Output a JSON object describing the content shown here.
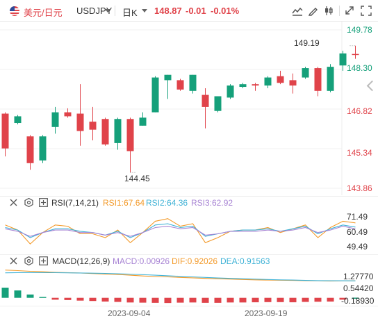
{
  "header": {
    "symbol_cn": "美元/日元",
    "symbol_en": "USDJPY",
    "period": "日K",
    "price": "148.87",
    "change": "-0.01",
    "change_pct": "-0.01%",
    "tool_icons": [
      "indicator-icon",
      "draw-pen-icon",
      "candle-style-icon",
      "expand-icon",
      "fullscreen-icon"
    ]
  },
  "colors": {
    "up": "#e0434a",
    "down": "#15a07a",
    "rsi1": "#f39a2a",
    "rsi2": "#3fb2d6",
    "rsi3": "#a884d4",
    "dif": "#f39a2a",
    "dea": "#3fb2d6"
  },
  "chart_data": [
    {
      "type": "candlestick",
      "title": "USDJPY 日K",
      "y_ticks": [
        "149.78",
        "148.30",
        "146.82",
        "145.34",
        "143.86"
      ],
      "ylim": [
        143.86,
        149.78
      ],
      "x_ticks": [
        "2023-09-04",
        "2023-09-19"
      ],
      "annotations": [
        {
          "text": "149.19"
        },
        {
          "text": "144.45"
        }
      ],
      "candles": [
        {
          "o": 146.65,
          "h": 146.7,
          "c": 145.35,
          "l": 145.05
        },
        {
          "o": 146.3,
          "h": 146.6,
          "c": 146.55,
          "l": 146.25
        },
        {
          "o": 145.8,
          "h": 145.85,
          "c": 144.8,
          "l": 144.55
        },
        {
          "o": 144.9,
          "h": 145.85,
          "c": 145.8,
          "l": 144.8
        },
        {
          "o": 146.15,
          "h": 146.9,
          "c": 146.7,
          "l": 145.9
        },
        {
          "o": 146.7,
          "h": 146.85,
          "c": 146.55,
          "l": 146.5
        },
        {
          "o": 146.65,
          "h": 147.75,
          "c": 146.0,
          "l": 145.45
        },
        {
          "o": 146.35,
          "h": 146.9,
          "c": 146.05,
          "l": 145.65
        },
        {
          "o": 146.45,
          "h": 146.5,
          "c": 145.5,
          "l": 145.45
        },
        {
          "o": 145.55,
          "h": 146.5,
          "c": 146.45,
          "l": 145.3
        },
        {
          "o": 146.45,
          "h": 146.5,
          "c": 145.25,
          "l": 144.45
        },
        {
          "o": 146.2,
          "h": 146.7,
          "c": 146.5,
          "l": 146.2
        },
        {
          "o": 146.7,
          "h": 148.05,
          "c": 148.0,
          "l": 146.7
        },
        {
          "o": 147.9,
          "h": 148.1,
          "c": 148.1,
          "l": 147.2
        },
        {
          "o": 147.9,
          "h": 147.95,
          "c": 147.55,
          "l": 147.5
        },
        {
          "o": 147.5,
          "h": 148.1,
          "c": 148.1,
          "l": 147.4
        },
        {
          "o": 147.35,
          "h": 147.6,
          "c": 146.9,
          "l": 146.1
        },
        {
          "o": 146.75,
          "h": 147.3,
          "c": 147.3,
          "l": 146.7
        },
        {
          "o": 147.25,
          "h": 147.75,
          "c": 147.7,
          "l": 147.2
        },
        {
          "o": 147.65,
          "h": 147.8,
          "c": 147.75,
          "l": 147.6
        },
        {
          "o": 147.75,
          "h": 147.8,
          "c": 147.7,
          "l": 147.5
        },
        {
          "o": 147.7,
          "h": 148.05,
          "c": 148.0,
          "l": 147.6
        },
        {
          "o": 148.05,
          "h": 148.25,
          "c": 147.8,
          "l": 147.75
        },
        {
          "o": 147.9,
          "h": 148.15,
          "c": 147.7,
          "l": 147.4
        },
        {
          "o": 148.0,
          "h": 148.4,
          "c": 148.35,
          "l": 147.95
        },
        {
          "o": 148.35,
          "h": 148.4,
          "c": 147.5,
          "l": 147.3
        },
        {
          "o": 147.5,
          "h": 148.5,
          "c": 148.4,
          "l": 147.45
        },
        {
          "o": 148.45,
          "h": 149.0,
          "c": 148.9,
          "l": 148.25
        },
        {
          "o": 148.88,
          "h": 149.19,
          "c": 148.87,
          "l": 148.7
        }
      ]
    },
    {
      "type": "line",
      "title": "RSI(7,14,21)",
      "legend": [
        "RSI1:67.64",
        "RSI2:64.36",
        "RSI3:62.92"
      ],
      "y_ticks": [
        "71.49",
        "60.49",
        "49.49"
      ],
      "ylim": [
        45,
        78
      ],
      "series": [
        {
          "name": "RSI1",
          "values": [
            66,
            62,
            51,
            60,
            66,
            65,
            59,
            59,
            56,
            62,
            52,
            60,
            69,
            71,
            65,
            67,
            52,
            56,
            61,
            62,
            62,
            64,
            60,
            63,
            66,
            56,
            64,
            69,
            67.64
          ]
        },
        {
          "name": "RSI2",
          "values": [
            64,
            62,
            56,
            60,
            63,
            63,
            61,
            60,
            58,
            61,
            56,
            60,
            66,
            67,
            64,
            65,
            57,
            59,
            61,
            62,
            62,
            63,
            61,
            63,
            65,
            59,
            63,
            66,
            64.36
          ]
        },
        {
          "name": "RSI3",
          "values": [
            63,
            61,
            57,
            60,
            62,
            62,
            60,
            60,
            58,
            60,
            57,
            60,
            64,
            65,
            63,
            64,
            58,
            59,
            61,
            61,
            61,
            62,
            61,
            62,
            64,
            60,
            62,
            65,
            62.92
          ]
        }
      ]
    },
    {
      "type": "bar+line",
      "title": "MACD(12,26,9)",
      "legend": [
        "MACD:0.00926",
        "DIF:0.92026",
        "DEA:0.91563"
      ],
      "y_ticks": [
        "1.27770",
        "0.54420",
        "-0.18930"
      ],
      "ylim": [
        -0.35,
        1.6
      ],
      "series": [
        {
          "name": "MACD",
          "values": [
            0.55,
            0.4,
            0.18,
            0.05,
            -0.1,
            -0.12,
            -0.15,
            -0.17,
            -0.2,
            -0.22,
            -0.25,
            -0.26,
            -0.27,
            -0.28,
            -0.26,
            -0.25,
            -0.27,
            -0.27,
            -0.25,
            -0.25,
            -0.24,
            -0.23,
            -0.23,
            -0.24,
            -0.22,
            -0.21,
            -0.2,
            -0.1,
            0.00926
          ]
        },
        {
          "name": "DIF",
          "values": [
            1.5,
            1.47,
            1.43,
            1.41,
            1.38,
            1.36,
            1.34,
            1.31,
            1.28,
            1.26,
            1.22,
            1.18,
            1.15,
            1.13,
            1.1,
            1.08,
            1.05,
            1.03,
            1.01,
            0.99,
            0.97,
            0.96,
            0.95,
            0.94,
            0.93,
            0.92,
            0.91,
            0.92,
            0.92026
          ]
        },
        {
          "name": "DEA",
          "values": [
            1.35,
            1.36,
            1.36,
            1.36,
            1.36,
            1.35,
            1.34,
            1.33,
            1.32,
            1.3,
            1.28,
            1.25,
            1.22,
            1.19,
            1.16,
            1.13,
            1.1,
            1.07,
            1.05,
            1.03,
            1.01,
            0.99,
            0.97,
            0.96,
            0.94,
            0.93,
            0.92,
            0.92,
            0.91563
          ]
        }
      ]
    }
  ]
}
